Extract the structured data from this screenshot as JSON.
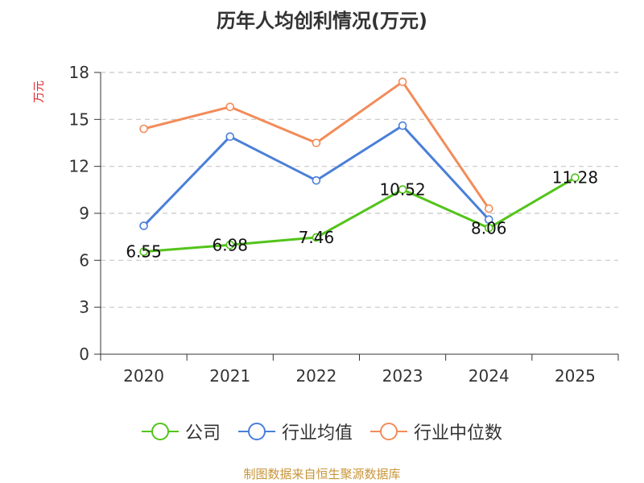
{
  "chart_data": {
    "type": "line",
    "title": "历年人均创利情况(万元)",
    "ylabel": "万元",
    "xlabel": "",
    "categories": [
      "2020",
      "2021",
      "2022",
      "2023",
      "2024",
      "2025"
    ],
    "ylim": [
      0,
      18
    ],
    "yticks": [
      0,
      3,
      6,
      9,
      12,
      15,
      18
    ],
    "grid": true,
    "legend_position": "bottom",
    "series": [
      {
        "name": "公司",
        "color": "#52c41a",
        "values": [
          6.55,
          6.98,
          7.46,
          10.52,
          8.06,
          11.28
        ],
        "labels": [
          "6.55",
          "6.98",
          "7.46",
          "10.52",
          "8.06",
          "11.28"
        ]
      },
      {
        "name": "行业均值",
        "color": "#4a7fd9",
        "values": [
          8.2,
          13.9,
          11.1,
          14.6,
          8.6,
          null
        ]
      },
      {
        "name": "行业中位数",
        "color": "#f28c5a",
        "values": [
          14.4,
          15.8,
          13.5,
          17.4,
          9.3,
          null
        ]
      }
    ]
  },
  "source": "制图数据来自恒生聚源数据库"
}
